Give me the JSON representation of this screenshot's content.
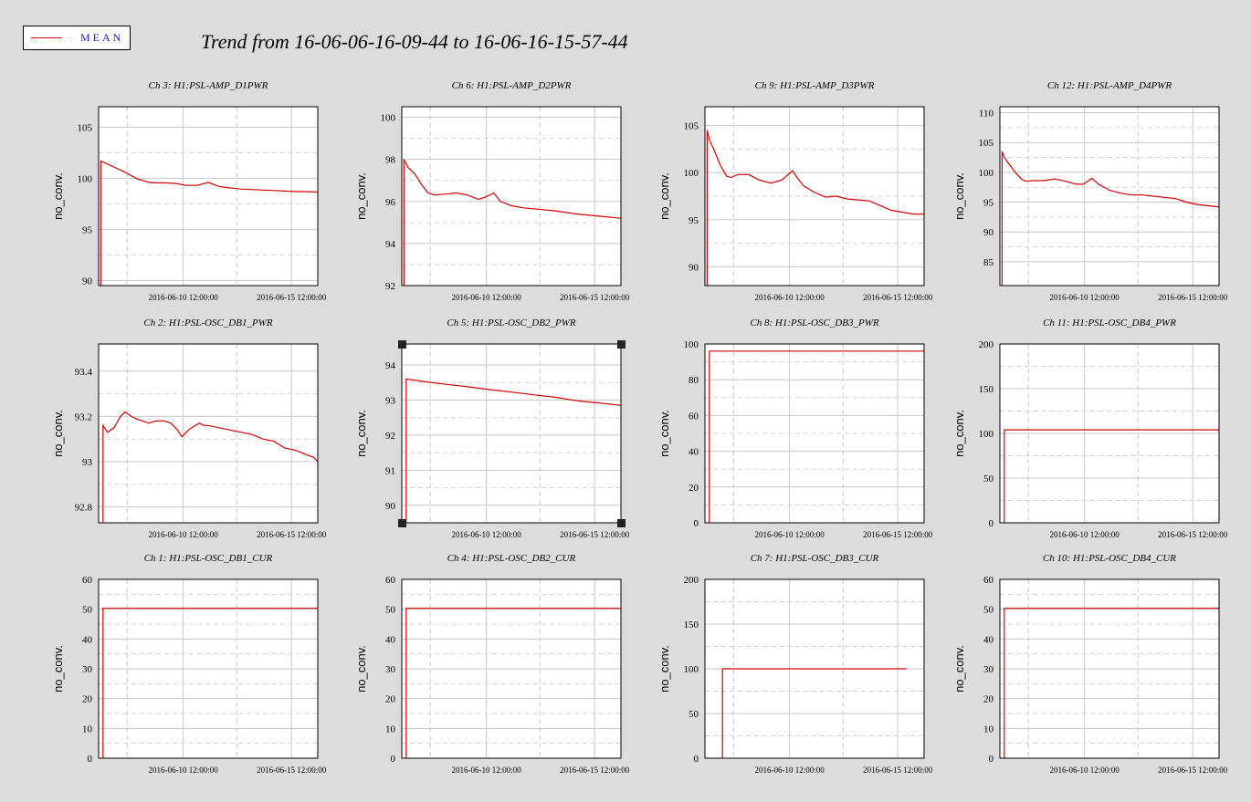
{
  "title": "Trend from 16-06-06-16-09-44 to 16-06-16-15-57-44",
  "legend": {
    "label": "MEAN",
    "color": "#d40000"
  },
  "x_axis": {
    "t_start": "2016-06-06 16:09:44",
    "t_end": "2016-06-16 15:57:44",
    "tick_labels": [
      "2016-06-10 12:00:00",
      "2016-06-15 12:00:00"
    ]
  },
  "chart_data": [
    {
      "type": "line",
      "title": "Ch 3: H1:PSL-AMP_D1PWR",
      "ylabel": "no_conv.",
      "ylim": [
        89.5,
        107
      ],
      "yticks": [
        90,
        95,
        100,
        105
      ],
      "series": [
        {
          "name": "MEAN",
          "x": [
            0.01,
            0.06,
            0.12,
            0.18,
            0.2,
            0.23,
            0.26,
            0.3,
            0.35,
            0.4,
            0.45,
            0.5,
            0.55,
            0.6,
            0.65,
            0.7,
            0.75,
            0.8,
            0.85,
            0.9,
            0.95,
            1.0
          ],
          "y": [
            101.7,
            101.2,
            100.6,
            99.9,
            99.8,
            99.6,
            99.55,
            99.55,
            99.5,
            99.3,
            99.3,
            99.6,
            99.2,
            99.05,
            98.95,
            98.9,
            98.85,
            98.8,
            98.75,
            98.7,
            98.7,
            98.65
          ]
        }
      ]
    },
    {
      "type": "line",
      "title": "Ch 6: H1:PSL-AMP_D2PWR",
      "ylabel": "no_conv.",
      "ylim": [
        92,
        100.5
      ],
      "yticks": [
        92,
        94,
        96,
        98,
        100
      ],
      "series": [
        {
          "name": "MEAN",
          "x": [
            0.01,
            0.03,
            0.06,
            0.09,
            0.12,
            0.15,
            0.2,
            0.25,
            0.3,
            0.35,
            0.38,
            0.42,
            0.45,
            0.5,
            0.55,
            0.6,
            0.7,
            0.8,
            0.9,
            1.0
          ],
          "y": [
            98.0,
            97.6,
            97.3,
            96.8,
            96.4,
            96.3,
            96.35,
            96.4,
            96.3,
            96.1,
            96.2,
            96.4,
            96.0,
            95.8,
            95.7,
            95.65,
            95.55,
            95.4,
            95.3,
            95.2
          ]
        }
      ]
    },
    {
      "type": "line",
      "title": "Ch 9: H1:PSL-AMP_D3PWR",
      "ylabel": "no_conv.",
      "ylim": [
        88,
        107
      ],
      "yticks": [
        90,
        95,
        100,
        105
      ],
      "series": [
        {
          "name": "MEAN",
          "x": [
            0.01,
            0.02,
            0.04,
            0.07,
            0.1,
            0.12,
            0.15,
            0.2,
            0.25,
            0.3,
            0.35,
            0.4,
            0.42,
            0.45,
            0.5,
            0.55,
            0.6,
            0.65,
            0.7,
            0.75,
            0.8,
            0.85,
            0.9,
            0.95,
            1.0
          ],
          "y": [
            104.5,
            103.5,
            102.5,
            100.8,
            99.6,
            99.5,
            99.8,
            99.8,
            99.2,
            98.9,
            99.2,
            100.2,
            99.5,
            98.6,
            97.9,
            97.4,
            97.5,
            97.2,
            97.1,
            97.0,
            96.5,
            96.0,
            95.8,
            95.6,
            95.6
          ]
        }
      ]
    },
    {
      "type": "line",
      "title": "Ch 12: H1:PSL-AMP_D4PWR",
      "ylabel": "no_conv.",
      "ylim": [
        81,
        111
      ],
      "yticks": [
        85,
        90,
        95,
        100,
        105,
        110
      ],
      "series": [
        {
          "name": "MEAN",
          "x": [
            0.01,
            0.02,
            0.04,
            0.07,
            0.1,
            0.12,
            0.15,
            0.2,
            0.25,
            0.3,
            0.35,
            0.38,
            0.4,
            0.42,
            0.45,
            0.5,
            0.55,
            0.6,
            0.65,
            0.7,
            0.75,
            0.8,
            0.85,
            0.9,
            0.95,
            1.0
          ],
          "y": [
            103.5,
            102.5,
            101.5,
            100.0,
            98.8,
            98.5,
            98.6,
            98.6,
            98.9,
            98.5,
            98.0,
            98.0,
            98.5,
            99.0,
            98.0,
            97.0,
            96.5,
            96.2,
            96.2,
            96.0,
            95.8,
            95.6,
            95.0,
            94.6,
            94.4,
            94.2
          ]
        }
      ]
    },
    {
      "type": "line",
      "title": "Ch 2: H1:PSL-OSC_DB1_PWR",
      "ylabel": "no_conv.",
      "ylim": [
        92.73,
        93.52
      ],
      "yticks": [
        92.8,
        93,
        93.2,
        93.4
      ],
      "series": [
        {
          "name": "MEAN",
          "x": [
            0.02,
            0.04,
            0.07,
            0.1,
            0.12,
            0.15,
            0.17,
            0.2,
            0.23,
            0.26,
            0.28,
            0.3,
            0.33,
            0.36,
            0.38,
            0.41,
            0.44,
            0.46,
            0.48,
            0.5,
            0.55,
            0.6,
            0.65,
            0.7,
            0.75,
            0.8,
            0.85,
            0.9,
            0.95,
            0.98,
            1.0
          ],
          "y": [
            93.16,
            93.13,
            93.15,
            93.2,
            93.22,
            93.2,
            93.19,
            93.18,
            93.17,
            93.18,
            93.18,
            93.18,
            93.17,
            93.14,
            93.11,
            93.14,
            93.16,
            93.17,
            93.16,
            93.16,
            93.15,
            93.14,
            93.13,
            93.12,
            93.1,
            93.09,
            93.06,
            93.05,
            93.03,
            93.02,
            93.0
          ]
        }
      ]
    },
    {
      "type": "line",
      "title": "Ch 5: H1:PSL-OSC_DB2_PWR",
      "ylabel": "no_conv.",
      "ylim": [
        89.5,
        94.6
      ],
      "yticks": [
        90,
        91,
        92,
        93,
        94
      ],
      "series": [
        {
          "name": "MEAN",
          "x": [
            0.02,
            0.1,
            0.2,
            0.3,
            0.4,
            0.5,
            0.6,
            0.7,
            0.8,
            0.9,
            1.0
          ],
          "y": [
            93.6,
            93.53,
            93.45,
            93.38,
            93.3,
            93.23,
            93.15,
            93.08,
            92.98,
            92.92,
            92.85
          ]
        }
      ]
    },
    {
      "type": "line",
      "title": "Ch 8: H1:PSL-OSC_DB3_PWR",
      "ylabel": "no_conv.",
      "ylim": [
        0,
        100
      ],
      "yticks": [
        0,
        20,
        40,
        60,
        80,
        100
      ],
      "series": [
        {
          "name": "MEAN",
          "x": [
            0.02,
            1.0
          ],
          "y": [
            96,
            96
          ]
        }
      ]
    },
    {
      "type": "line",
      "title": "Ch 11: H1:PSL-OSC_DB4_PWR",
      "ylabel": "no_conv.",
      "ylim": [
        0,
        200
      ],
      "yticks": [
        0,
        50,
        100,
        150,
        200
      ],
      "series": [
        {
          "name": "MEAN",
          "x": [
            0.02,
            1.0
          ],
          "y": [
            104,
            104
          ]
        }
      ]
    },
    {
      "type": "line",
      "title": "Ch 1: H1:PSL-OSC_DB1_CUR",
      "ylabel": "no_conv.",
      "ylim": [
        0,
        60
      ],
      "yticks": [
        0,
        10,
        20,
        30,
        40,
        50,
        60
      ],
      "series": [
        {
          "name": "MEAN",
          "x": [
            0.02,
            1.0
          ],
          "y": [
            50.3,
            50.3
          ]
        }
      ]
    },
    {
      "type": "line",
      "title": "Ch 4: H1:PSL-OSC_DB2_CUR",
      "ylabel": "no_conv.",
      "ylim": [
        0,
        60
      ],
      "yticks": [
        0,
        10,
        20,
        30,
        40,
        50,
        60
      ],
      "series": [
        {
          "name": "MEAN",
          "x": [
            0.02,
            1.0
          ],
          "y": [
            50.3,
            50.3
          ]
        }
      ]
    },
    {
      "type": "line",
      "title": "Ch 7: H1:PSL-OSC_DB3_CUR",
      "ylabel": "no_conv.",
      "ylim": [
        0,
        200
      ],
      "yticks": [
        0,
        50,
        100,
        150,
        200
      ],
      "series": [
        {
          "name": "MEAN",
          "x": [
            0.08,
            0.92
          ],
          "y": [
            100,
            100
          ]
        }
      ]
    },
    {
      "type": "line",
      "title": "Ch 10: H1:PSL-OSC_DB4_CUR",
      "ylabel": "no_conv.",
      "ylim": [
        0,
        60
      ],
      "yticks": [
        0,
        10,
        20,
        30,
        40,
        50,
        60
      ],
      "series": [
        {
          "name": "MEAN",
          "x": [
            0.02,
            1.0
          ],
          "y": [
            50.3,
            50.3
          ]
        }
      ]
    }
  ]
}
